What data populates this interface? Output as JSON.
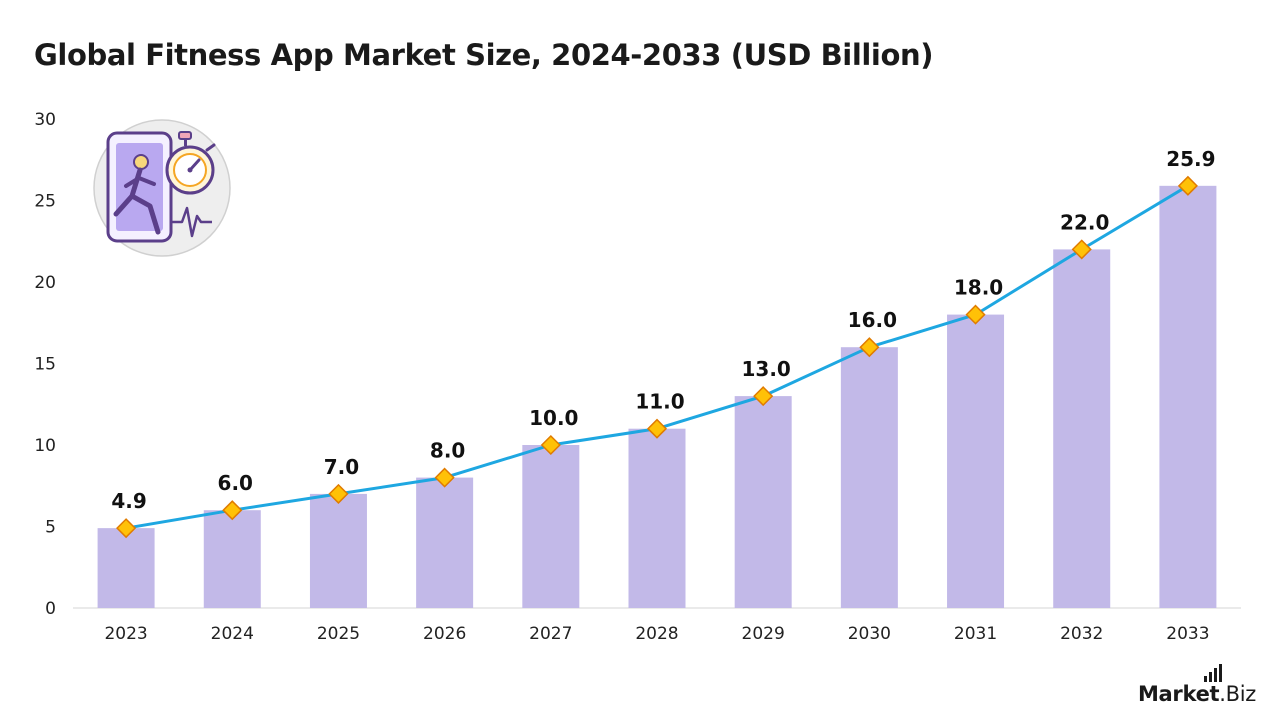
{
  "chart_data": {
    "type": "bar",
    "title": "Global Fitness App Market Size, 2024-2033 (USD Billion)",
    "categories": [
      "2023",
      "2024",
      "2025",
      "2026",
      "2027",
      "2028",
      "2029",
      "2030",
      "2031",
      "2032",
      "2033"
    ],
    "series": [
      {
        "values": [
          4.9,
          6.0,
          7.0,
          8.0,
          10.0,
          11.0,
          13.0,
          16.0,
          18.0,
          22.0,
          25.9
        ]
      }
    ],
    "value_labels": [
      "4.9",
      "6.0",
      "7.0",
      "8.0",
      "10.0",
      "11.0",
      "13.0",
      "16.0",
      "18.0",
      "22.0",
      "25.9"
    ],
    "overlay": "line-with-diamond-markers",
    "ylim": [
      0,
      30
    ],
    "yticks": [
      0,
      5,
      10,
      15,
      20,
      25,
      30
    ],
    "grid": false,
    "colors": {
      "bar": "#c2b9e8",
      "line": "#1ea7e1",
      "marker": "#ffc107",
      "marker_stroke": "#e07b00"
    }
  },
  "brand": {
    "name": "Market",
    "suffix": ".Biz"
  },
  "icons": {
    "illustration": "fitness-app-stopwatch-icon"
  }
}
